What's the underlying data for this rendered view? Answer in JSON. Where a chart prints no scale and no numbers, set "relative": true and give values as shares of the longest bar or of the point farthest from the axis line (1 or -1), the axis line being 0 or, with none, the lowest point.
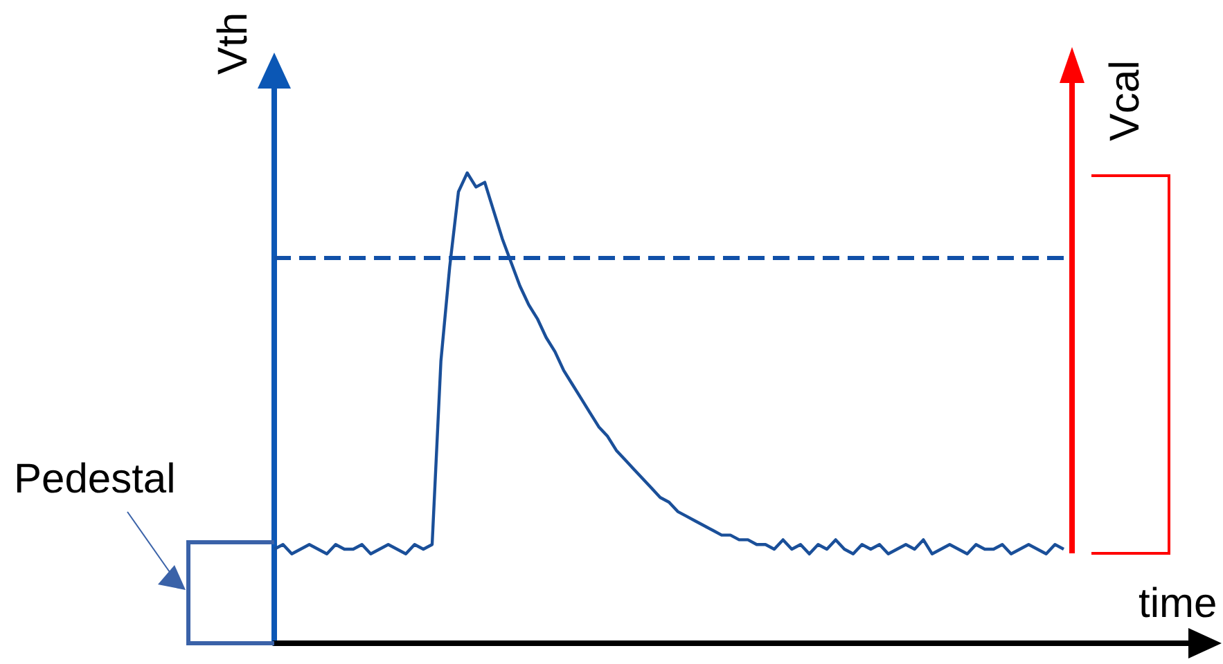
{
  "chart_data": {
    "type": "line",
    "relative": true,
    "ylabel": "Vth",
    "y2label": "Vcal",
    "xlabel": "time",
    "grid": false,
    "annotations": [
      "Pedestal"
    ],
    "marker": "none",
    "line_style": "solid",
    "tick_labels": false,
    "categories": [
      null,
      null,
      null,
      null,
      null,
      null,
      null,
      null,
      null,
      null,
      null,
      null,
      null,
      null,
      null,
      null,
      null,
      null,
      null,
      null,
      null,
      null,
      null,
      null,
      null,
      null,
      null,
      null,
      null,
      null,
      null,
      null,
      null,
      null,
      null,
      null,
      null,
      null,
      null,
      null,
      null,
      null,
      null,
      null,
      null,
      null,
      null,
      null,
      null,
      null,
      null,
      null,
      null,
      null,
      null,
      null,
      null,
      null,
      null,
      null,
      null,
      null,
      null,
      null,
      null,
      null,
      null,
      null,
      null,
      null,
      null,
      null,
      null,
      null,
      null,
      null,
      null,
      null,
      null,
      null,
      null,
      null,
      null,
      null,
      null,
      null,
      null,
      null,
      null,
      null,
      null
    ],
    "series": [
      {
        "color": "#1a4f99",
        "values": [
          0.2,
          0.21,
          0.19,
          0.2,
          0.21,
          0.2,
          0.19,
          0.21,
          0.2,
          0.2,
          0.21,
          0.19,
          0.2,
          0.21,
          0.2,
          0.19,
          0.21,
          0.2,
          0.21,
          0.6,
          0.8,
          0.96,
          1.0,
          0.97,
          0.98,
          0.92,
          0.86,
          0.81,
          0.76,
          0.72,
          0.69,
          0.65,
          0.62,
          0.58,
          0.55,
          0.52,
          0.49,
          0.46,
          0.44,
          0.41,
          0.39,
          0.37,
          0.35,
          0.33,
          0.31,
          0.3,
          0.28,
          0.27,
          0.26,
          0.25,
          0.24,
          0.23,
          0.23,
          0.22,
          0.22,
          0.21,
          0.21,
          0.2,
          0.22,
          0.2,
          0.21,
          0.19,
          0.21,
          0.2,
          0.22,
          0.2,
          0.19,
          0.21,
          0.2,
          0.21,
          0.19,
          0.2,
          0.21,
          0.2,
          0.22,
          0.19,
          0.2,
          0.21,
          0.2,
          0.19,
          0.21,
          0.2,
          0.2,
          0.21,
          0.19,
          0.2,
          0.21,
          0.2,
          0.19,
          0.21,
          0.2
        ]
      }
    ],
    "ref_lines": [
      {
        "axis": "y",
        "value": 0.82,
        "color": "#1150a8",
        "line_style": "dashed"
      }
    ]
  }
}
